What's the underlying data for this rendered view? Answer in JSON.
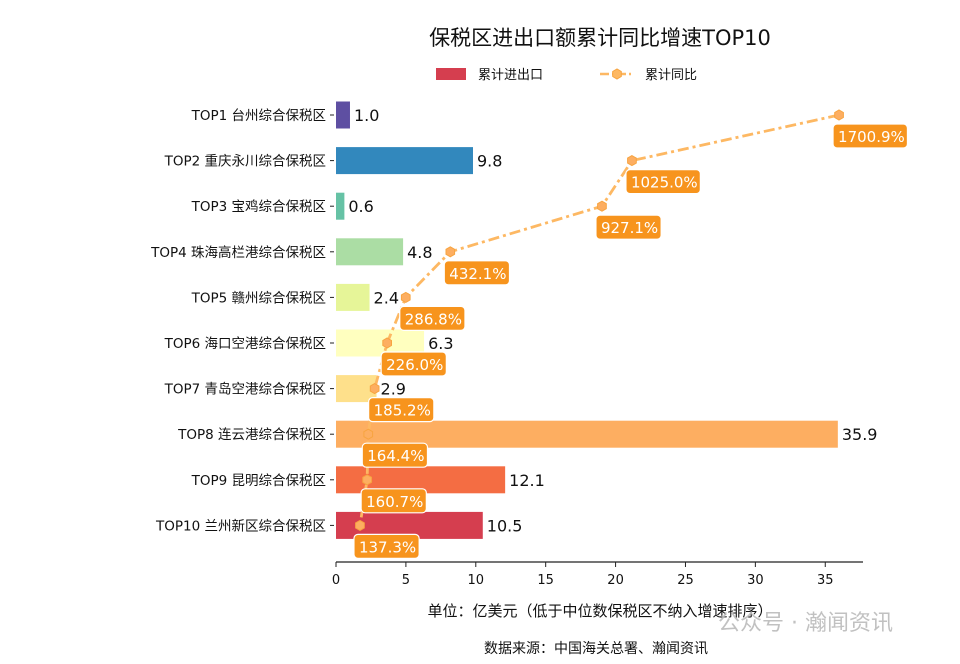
{
  "chart_data": {
    "type": "bar",
    "title": "保税区进出口额累计同比增速TOP10",
    "categories": [
      "TOP1 台州综合保税区",
      "TOP2 重庆永川综合保税区",
      "TOP3 宝鸡综合保税区",
      "TOP4 珠海高栏港综合保税区",
      "TOP5 赣州综合保税区",
      "TOP6 海口空港综合保税区",
      "TOP7 青岛空港综合保税区",
      "TOP8 连云港综合保税区",
      "TOP9 昆明综合保税区",
      "TOP10 兰州新区综合保税区"
    ],
    "series": [
      {
        "name": "累计进出口",
        "type": "bar",
        "values": [
          1.0,
          9.8,
          0.6,
          4.8,
          2.4,
          6.3,
          2.9,
          35.9,
          12.1,
          10.5
        ],
        "value_labels": [
          "1.0",
          "9.8",
          "0.6",
          "4.8",
          "2.4",
          "6.3",
          "2.9",
          "35.9",
          "12.1",
          "10.5"
        ],
        "colors": [
          "#5e4fa2",
          "#3288bd",
          "#66c2a5",
          "#abdda4",
          "#e6f598",
          "#ffffbf",
          "#fee08b",
          "#fdae61",
          "#f46d43",
          "#d53e4f"
        ],
        "legend_color": "#d53e4f"
      },
      {
        "name": "累计同比",
        "type": "line",
        "unit": "%",
        "values": [
          1700.9,
          1025.0,
          927.1,
          432.1,
          286.8,
          226.0,
          185.2,
          164.4,
          160.7,
          137.3
        ],
        "value_labels": [
          "1700.9%",
          "1025.0%",
          "927.1%",
          "432.1%",
          "286.8%",
          "226.0%",
          "185.2%",
          "164.4%",
          "160.7%",
          "137.3%"
        ],
        "color": "#fdb863",
        "marker": "hexagon",
        "linestyle": "dash-dot",
        "label_box_color": "#f7941d",
        "secondary_xlim": [
          59.1,
          1779.1
        ]
      }
    ],
    "xticks": [
      "0",
      "5",
      "10",
      "15",
      "20",
      "25",
      "30",
      "35"
    ],
    "xlim": [
      0,
      37.7
    ],
    "orientation": "horizontal",
    "legend_placement": "top-center",
    "grid": false,
    "xlabel": "单位：亿美元（低于中位数保税区不纳入增速排序）",
    "source": "数据来源：中国海关总署、瀚闻资讯"
  },
  "watermark": "公众号 · 瀚闻资讯"
}
